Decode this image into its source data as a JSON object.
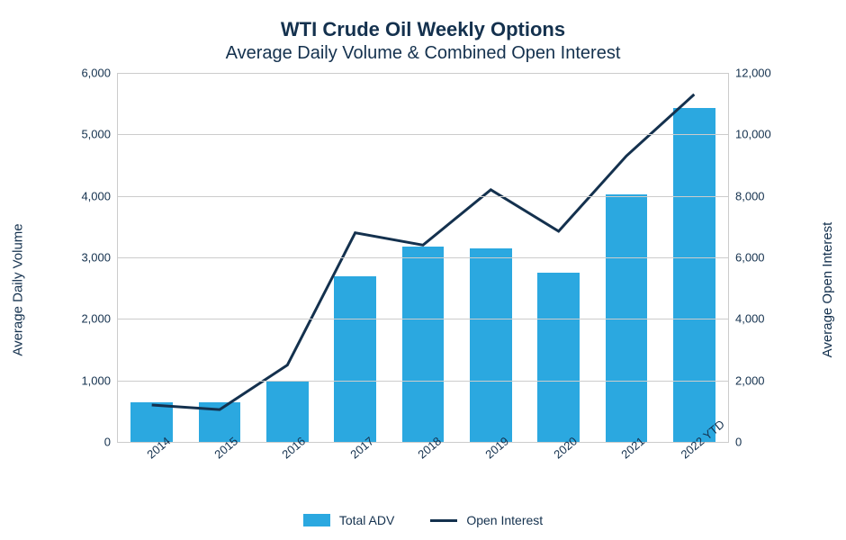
{
  "chart": {
    "type": "bar+line",
    "title": "WTI Crude Oil Weekly Options",
    "subtitle": "Average Daily Volume & Combined Open Interest",
    "title_fontsize": 22,
    "subtitle_fontsize": 20,
    "title_color": "#14314e",
    "background_color": "#ffffff",
    "categories": [
      "2014",
      "2015",
      "2016",
      "2017",
      "2018",
      "2019",
      "2020",
      "2021",
      "2022 YTD"
    ],
    "bar_series": {
      "name": "Total ADV",
      "values": [
        650,
        650,
        1000,
        2700,
        3180,
        3150,
        2750,
        4020,
        5430
      ],
      "color": "#2ba8e0",
      "bar_width_ratio": 0.62
    },
    "line_series": {
      "name": "Open Interest",
      "values": [
        1200,
        1050,
        2500,
        6800,
        6400,
        8200,
        6850,
        9300,
        11300
      ],
      "color": "#14314e",
      "line_width": 3
    },
    "y_left": {
      "label": "Average Daily Volume",
      "min": 0,
      "max": 6000,
      "ticks": [
        0,
        1000,
        2000,
        3000,
        4000,
        5000,
        6000
      ],
      "tick_labels": [
        "0",
        "1,000",
        "2,000",
        "3,000",
        "4,000",
        "5,000",
        "6,000"
      ]
    },
    "y_right": {
      "label": "Average Open Interest",
      "min": 0,
      "max": 12000,
      "ticks": [
        0,
        2000,
        4000,
        6000,
        8000,
        10000,
        12000
      ],
      "tick_labels": [
        "0",
        "2,000",
        "4,000",
        "6,000",
        "8,000",
        "10,000",
        "12,000"
      ]
    },
    "grid_color": "#cccccc",
    "axis_fontsize": 13,
    "axis_label_fontsize": 15,
    "legend_fontsize": 14,
    "x_tick_rotation_deg": -40
  }
}
